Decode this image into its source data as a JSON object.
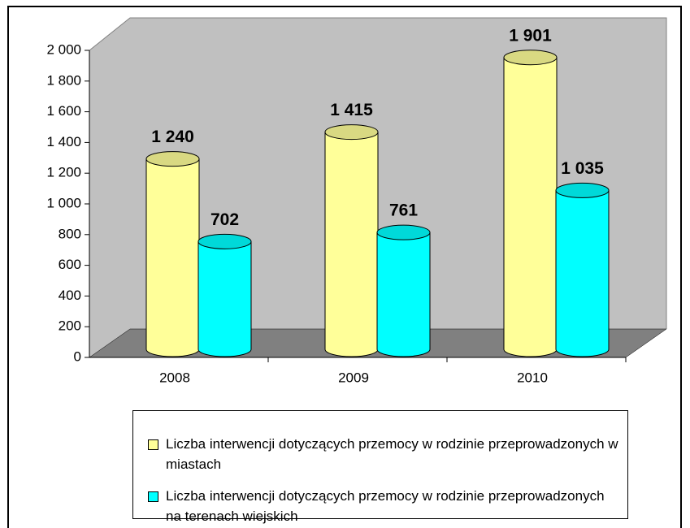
{
  "chart_data": {
    "type": "bar",
    "categories": [
      "2008",
      "2009",
      "2010"
    ],
    "series": [
      {
        "name": "Liczba interwencji dotyczących przemocy w rodzinie przeprowadzonych w miastach",
        "color": "#ffff99",
        "values": [
          1240,
          1415,
          1901
        ],
        "value_labels": [
          "1 240",
          "1 415",
          "1 901"
        ]
      },
      {
        "name": "Liczba interwencji dotyczących przemocy w rodzinie przeprowadzonych na terenach wiejskich",
        "color": "#00ffff",
        "values": [
          702,
          761,
          1035
        ],
        "value_labels": [
          "702",
          "761",
          "1 035"
        ]
      }
    ],
    "ylim": [
      0,
      2000
    ],
    "yticks": [
      0,
      200,
      400,
      600,
      800,
      {
        "value": 1000,
        "label": "1 000"
      },
      {
        "value": 1200,
        "label": "1 200"
      },
      {
        "value": 1400,
        "label": "1 400"
      },
      {
        "value": 1600,
        "label": "1 600"
      },
      {
        "value": 1800,
        "label": "1 800"
      },
      {
        "value": 2000,
        "label": "2 000"
      }
    ],
    "legend": "bottom"
  }
}
